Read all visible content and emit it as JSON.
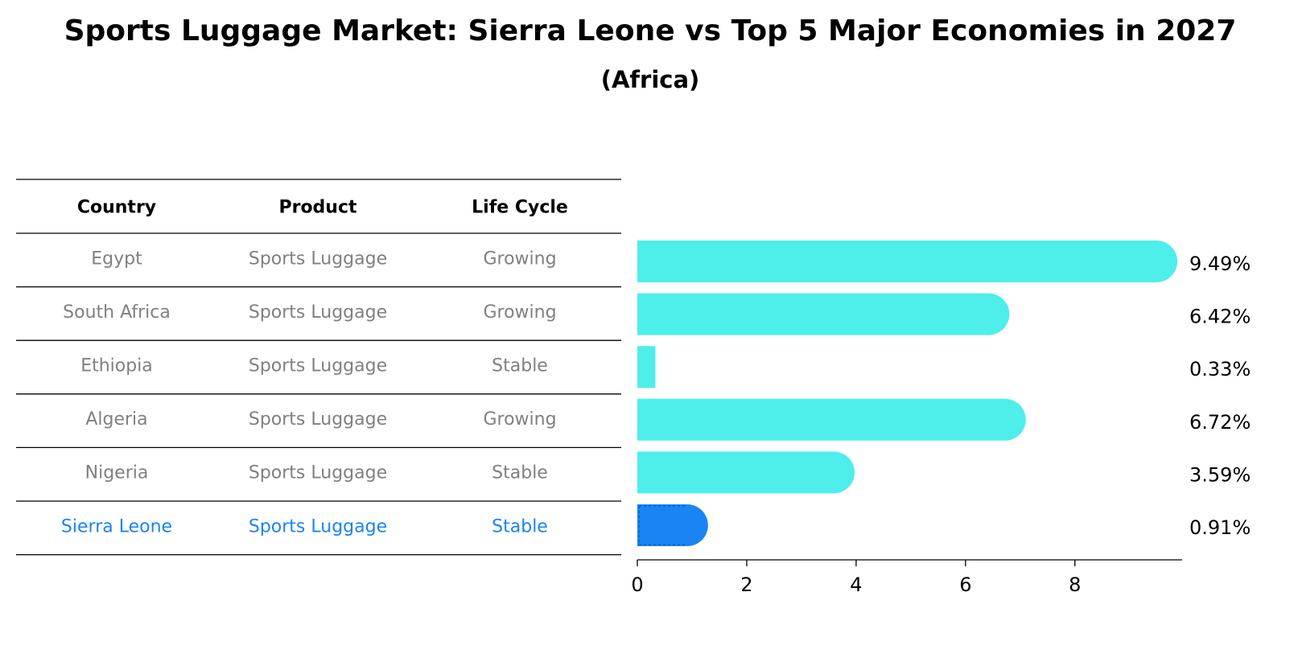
{
  "chart_data": {
    "type": "bar",
    "orientation": "horizontal",
    "title": "Sports Luggage Market: Sierra Leone vs Top 5 Major Economies in 2027",
    "subtitle": "(Africa)",
    "table": {
      "headers": [
        "Country",
        "Product",
        "Life Cycle"
      ],
      "rows": [
        [
          "Egypt",
          "Sports Luggage",
          "Growing"
        ],
        [
          "South Africa",
          "Sports Luggage",
          "Growing"
        ],
        [
          "Ethiopia",
          "Sports Luggage",
          "Stable"
        ],
        [
          "Algeria",
          "Sports Luggage",
          "Growing"
        ],
        [
          "Nigeria",
          "Sports Luggage",
          "Stable"
        ],
        [
          "Sierra Leone",
          "Sports Luggage",
          "Stable"
        ]
      ]
    },
    "categories": [
      "Egypt",
      "South Africa",
      "Ethiopia",
      "Algeria",
      "Nigeria",
      "Sierra Leone"
    ],
    "values": [
      9.49,
      6.42,
      0.33,
      6.72,
      3.59,
      0.91
    ],
    "value_labels": [
      "9.49%",
      "6.42%",
      "0.33%",
      "6.72%",
      "3.59%",
      "0.91%"
    ],
    "highlight": "Sierra Leone",
    "xlim": [
      0,
      9.96
    ],
    "xticks": [
      0,
      2,
      4,
      6,
      8
    ],
    "xtick_labels": [
      "0",
      "2",
      "4",
      "6",
      "8"
    ],
    "xlabel": "",
    "ylabel": "",
    "grid": false,
    "colors": {
      "bar": "#4eeeeb",
      "highlight_bar": "#1a84f4",
      "table_text": "#808080",
      "highlight_text": "#1a84f4"
    }
  }
}
